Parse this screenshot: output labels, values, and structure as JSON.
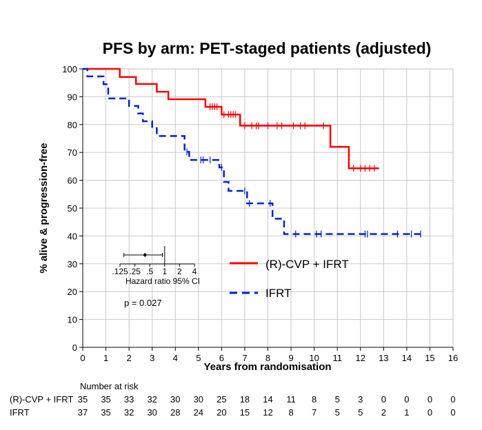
{
  "chart_data": {
    "type": "line",
    "subtype": "kaplan-meier",
    "title": "PFS by arm: PET-staged patients (adjusted)",
    "xlabel": "Years from randomisation",
    "ylabel": "% alive & progression-free",
    "xlim": [
      0,
      16
    ],
    "ylim": [
      0,
      100
    ],
    "xticks": [
      "0",
      "1",
      "2",
      "3",
      "4",
      "5",
      "6",
      "7",
      "8",
      "9",
      "10",
      "11",
      "12",
      "13",
      "14",
      "15",
      "16"
    ],
    "yticks": [
      "0",
      "10",
      "20",
      "30",
      "40",
      "50",
      "60",
      "70",
      "80",
      "90",
      "100"
    ],
    "grid": true,
    "series": [
      {
        "name": "(R)-CVP + IFRT",
        "color": "#ff0000",
        "dash": "solid",
        "steps": [
          [
            0,
            100
          ],
          [
            1.6,
            97.1
          ],
          [
            2.3,
            94.6
          ],
          [
            3.2,
            91.8
          ],
          [
            3.7,
            89.1
          ],
          [
            5.3,
            86.4
          ],
          [
            6.0,
            83.6
          ],
          [
            6.8,
            79.6
          ],
          [
            10.7,
            72.0
          ],
          [
            11.5,
            64.3
          ],
          [
            12.8,
            64.3
          ]
        ],
        "censor": [
          5.5,
          5.6,
          5.7,
          5.8,
          6.1,
          6.3,
          6.4,
          6.5,
          6.6,
          7.0,
          7.3,
          7.5,
          7.6,
          8.0,
          8.4,
          8.6,
          9.1,
          9.4,
          9.6,
          10.4,
          11.7,
          12.0,
          12.2,
          12.4,
          12.6
        ]
      },
      {
        "name": "IFRT",
        "color": "#0022cc",
        "dash": "dashed",
        "steps": [
          [
            0,
            100
          ],
          [
            0.2,
            97.3
          ],
          [
            0.9,
            94.5
          ],
          [
            1.1,
            89.4
          ],
          [
            2.0,
            86.7
          ],
          [
            2.4,
            84.0
          ],
          [
            2.6,
            81.2
          ],
          [
            3.0,
            78.7
          ],
          [
            3.2,
            75.9
          ],
          [
            4.4,
            70.2
          ],
          [
            4.6,
            67.3
          ],
          [
            5.9,
            64.6
          ],
          [
            6.1,
            59.4
          ],
          [
            6.3,
            56.2
          ],
          [
            7.1,
            51.7
          ],
          [
            8.2,
            46.2
          ],
          [
            8.7,
            40.7
          ],
          [
            14.7,
            40.7
          ]
        ],
        "censor": [
          4.5,
          5.1,
          5.2,
          5.5,
          6.0,
          7.0,
          7.2,
          8.1,
          9.2,
          10.1,
          10.3,
          12.2,
          12.3,
          13.6,
          14.2,
          14.6
        ]
      }
    ],
    "annotations": {
      "p_value": "p = 0.027",
      "forest": {
        "label": "Hazard ratio 95% CI",
        "ticks": [
          ".125",
          ".25",
          ".5",
          "1",
          "2",
          "4"
        ],
        "tick_values": [
          0.125,
          0.25,
          0.5,
          1,
          2,
          4
        ],
        "estimate": 0.4,
        "ci": [
          0.15,
          0.9
        ]
      },
      "risk_table": {
        "heading": "Number at risk",
        "times": [
          0,
          1,
          2,
          3,
          4,
          5,
          6,
          7,
          8,
          9,
          10,
          11,
          12,
          13,
          14,
          15,
          16
        ],
        "rows": [
          {
            "label": "(R)-CVP + IFRT",
            "counts": [
              "35",
              "35",
              "33",
              "32",
              "30",
              "30",
              "25",
              "18",
              "14",
              "11",
              "8",
              "5",
              "3",
              "0",
              "0",
              "0",
              "0"
            ]
          },
          {
            "label": "IFRT",
            "counts": [
              "37",
              "35",
              "32",
              "30",
              "28",
              "24",
              "20",
              "15",
              "12",
              "8",
              "7",
              "5",
              "5",
              "2",
              "1",
              "0",
              "0"
            ]
          }
        ]
      }
    }
  }
}
